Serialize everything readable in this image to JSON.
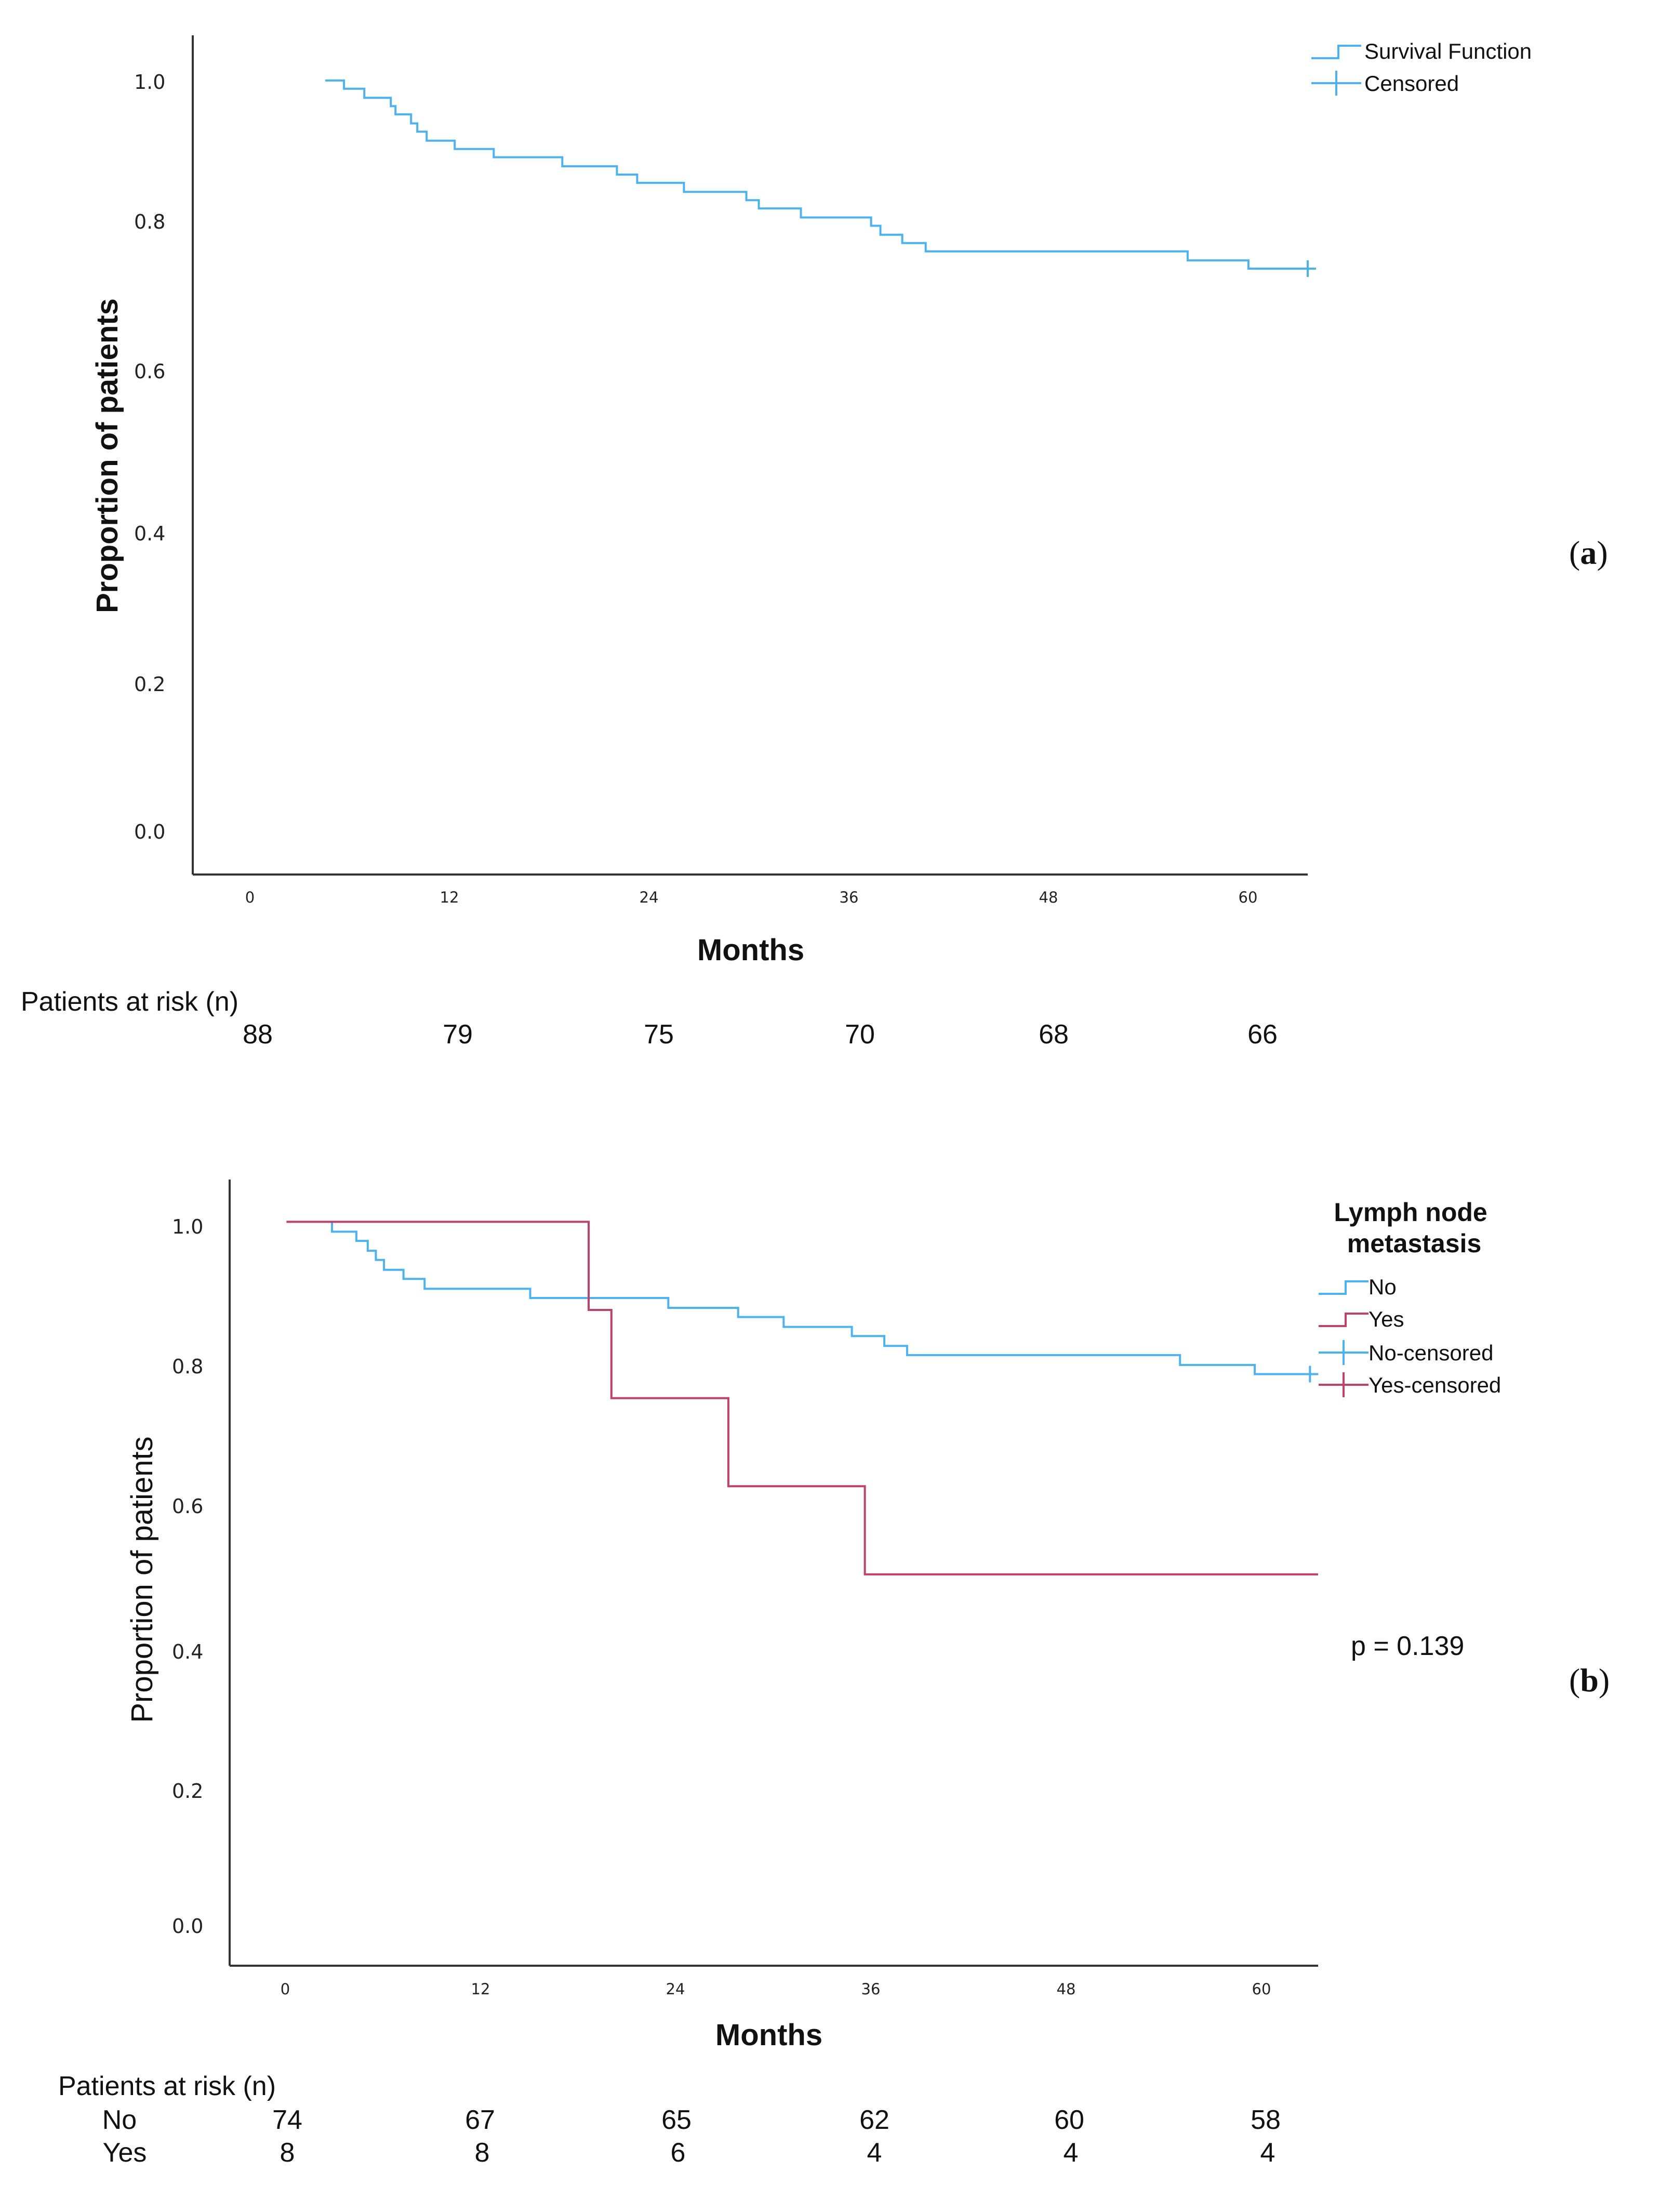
{
  "chart_data": [
    {
      "type": "line",
      "panel_label": "a",
      "xlabel": "Months",
      "ylabel": "Proportion of patients",
      "xlim": [
        -8.5,
        63
      ],
      "ylim": [
        -0.055,
        1.06
      ],
      "x_ticks": [
        "0",
        "12",
        "24",
        "36",
        "48",
        "60"
      ],
      "y_ticks": [
        "0.0",
        "0.2",
        "0.4",
        "0.6",
        "0.8",
        "1.0"
      ],
      "legend": {
        "position": "top-right",
        "entries": [
          "Survival Function",
          "Censored"
        ]
      },
      "series": [
        {
          "name": "Survival Function",
          "color": "#4cb3f0",
          "step": true,
          "x": [
            0,
            1.2,
            2.5,
            4.2,
            4.5,
            5.5,
            5.9,
            6.5,
            8.3,
            10.8,
            15.2,
            18.7,
            20.0,
            23.0,
            27.0,
            27.8,
            30.5,
            35.0,
            35.6,
            37.0,
            38.5,
            55.3,
            59.2,
            63.0
          ],
          "y": [
            1.0,
            0.989,
            0.977,
            0.966,
            0.955,
            0.943,
            0.932,
            0.92,
            0.909,
            0.898,
            0.886,
            0.875,
            0.864,
            0.852,
            0.841,
            0.83,
            0.818,
            0.807,
            0.795,
            0.784,
            0.773,
            0.761,
            0.75,
            0.75
          ],
          "censored": [
            {
              "x": 63.0,
              "y": 0.75
            }
          ]
        }
      ],
      "at_risk": {
        "title": "Patients at risk (n)",
        "rows": [
          {
            "label": "",
            "values": [
              "88",
              "79",
              "75",
              "70",
              "68",
              "66"
            ]
          }
        ]
      }
    },
    {
      "type": "line",
      "panel_label": "b",
      "xlabel": "Months",
      "ylabel": "Proportion of patients",
      "xlim": [
        -3.5,
        63.5
      ],
      "ylim": [
        -0.055,
        1.06
      ],
      "x_ticks": [
        "0",
        "12",
        "24",
        "36",
        "48",
        "60"
      ],
      "y_ticks": [
        "0.0",
        "0.2",
        "0.4",
        "0.6",
        "0.8",
        "1.0"
      ],
      "legend": {
        "position": "top-right",
        "title": "Lymph node metastasis",
        "entries": [
          "No",
          "Yes",
          "No-censored",
          "Yes-censored"
        ]
      },
      "annotation": "p = 0.139",
      "series": [
        {
          "name": "No",
          "color": "#4cb3f0",
          "step": true,
          "x": [
            0,
            2.8,
            4.3,
            5.0,
            5.5,
            6.0,
            7.2,
            8.5,
            15.0,
            23.5,
            27.8,
            30.6,
            34.8,
            36.8,
            38.2,
            55.0,
            59.6,
            63.0
          ],
          "y": [
            1.0,
            0.986,
            0.973,
            0.959,
            0.946,
            0.932,
            0.919,
            0.905,
            0.892,
            0.878,
            0.865,
            0.851,
            0.838,
            0.824,
            0.811,
            0.797,
            0.784,
            0.784
          ],
          "censored": [
            {
              "x": 63.0,
              "y": 0.784
            }
          ]
        },
        {
          "name": "Yes",
          "color": "#c0426a",
          "step": true,
          "x": [
            0,
            18.6,
            20.0,
            27.2,
            35.6,
            63.5
          ],
          "y": [
            1.0,
            0.875,
            0.75,
            0.625,
            0.5,
            0.5
          ],
          "censored": []
        }
      ],
      "at_risk": {
        "title": "Patients at risk (n)",
        "rows": [
          {
            "label": "No",
            "values": [
              "74",
              "67",
              "65",
              "62",
              "60",
              "58"
            ]
          },
          {
            "label": "Yes",
            "values": [
              "8",
              "8",
              "6",
              "4",
              "4",
              "4"
            ]
          }
        ]
      }
    }
  ]
}
